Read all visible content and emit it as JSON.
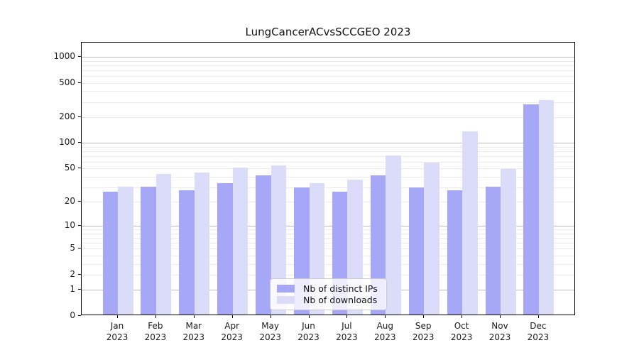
{
  "chart_data": {
    "type": "bar",
    "title": "LungCancerACvsSCCGEO 2023",
    "categories": [
      "Jan",
      "Feb",
      "Mar",
      "Apr",
      "May",
      "Jun",
      "Jul",
      "Aug",
      "Sep",
      "Oct",
      "Nov",
      "Dec"
    ],
    "year_label": "2023",
    "series": [
      {
        "name": "Nb of distinct IPs",
        "color": "#a7a7f8",
        "values": [
          26,
          30,
          27,
          33,
          41,
          29,
          26,
          41,
          29,
          27,
          30,
          274
        ]
      },
      {
        "name": "Nb of downloads",
        "color": "#dbdbfa",
        "values": [
          30,
          42,
          44,
          50,
          53,
          33,
          36,
          70,
          58,
          135,
          48,
          307
        ]
      }
    ],
    "y_axis": {
      "scale": "log1p",
      "tick_labels": [
        "1000",
        "500",
        "200",
        "100",
        "50",
        "20",
        "10",
        "5",
        "2",
        "1",
        "0"
      ],
      "tick_values": [
        1000,
        500,
        200,
        100,
        50,
        20,
        10,
        5,
        2,
        1,
        0
      ]
    },
    "legend_position": "bottom-center",
    "grid": true,
    "colors": {
      "bar_distinct_ips": "#a7a7f8",
      "bar_downloads": "#dbdbfa",
      "grid_major": "#bbbbbb",
      "grid_minor": "#eaeaea",
      "spine": "#000000",
      "text": "#1a1a1a"
    }
  }
}
